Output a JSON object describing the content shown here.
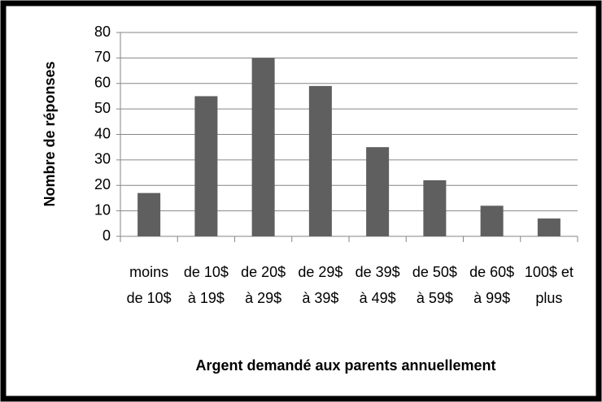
{
  "chart_data": {
    "type": "bar",
    "categories": [
      "moins de 10$",
      "de 10$ à 19$",
      "de 20$ à 29$",
      "de 29$ à 39$",
      "de 39$ à 49$",
      "de 50$ à 59$",
      "de 60$ à 99$",
      "100$ et plus"
    ],
    "values": [
      17,
      55,
      70,
      59,
      35,
      22,
      12,
      7
    ],
    "color": "#5f5f5f",
    "x_label": "Argent demandé aux parents annuellement",
    "y_label": "Nombre de réponses",
    "ylim": [
      0,
      80
    ],
    "yticks": [
      0,
      10,
      20,
      30,
      40,
      50,
      60,
      70,
      80
    ],
    "grid": true
  }
}
